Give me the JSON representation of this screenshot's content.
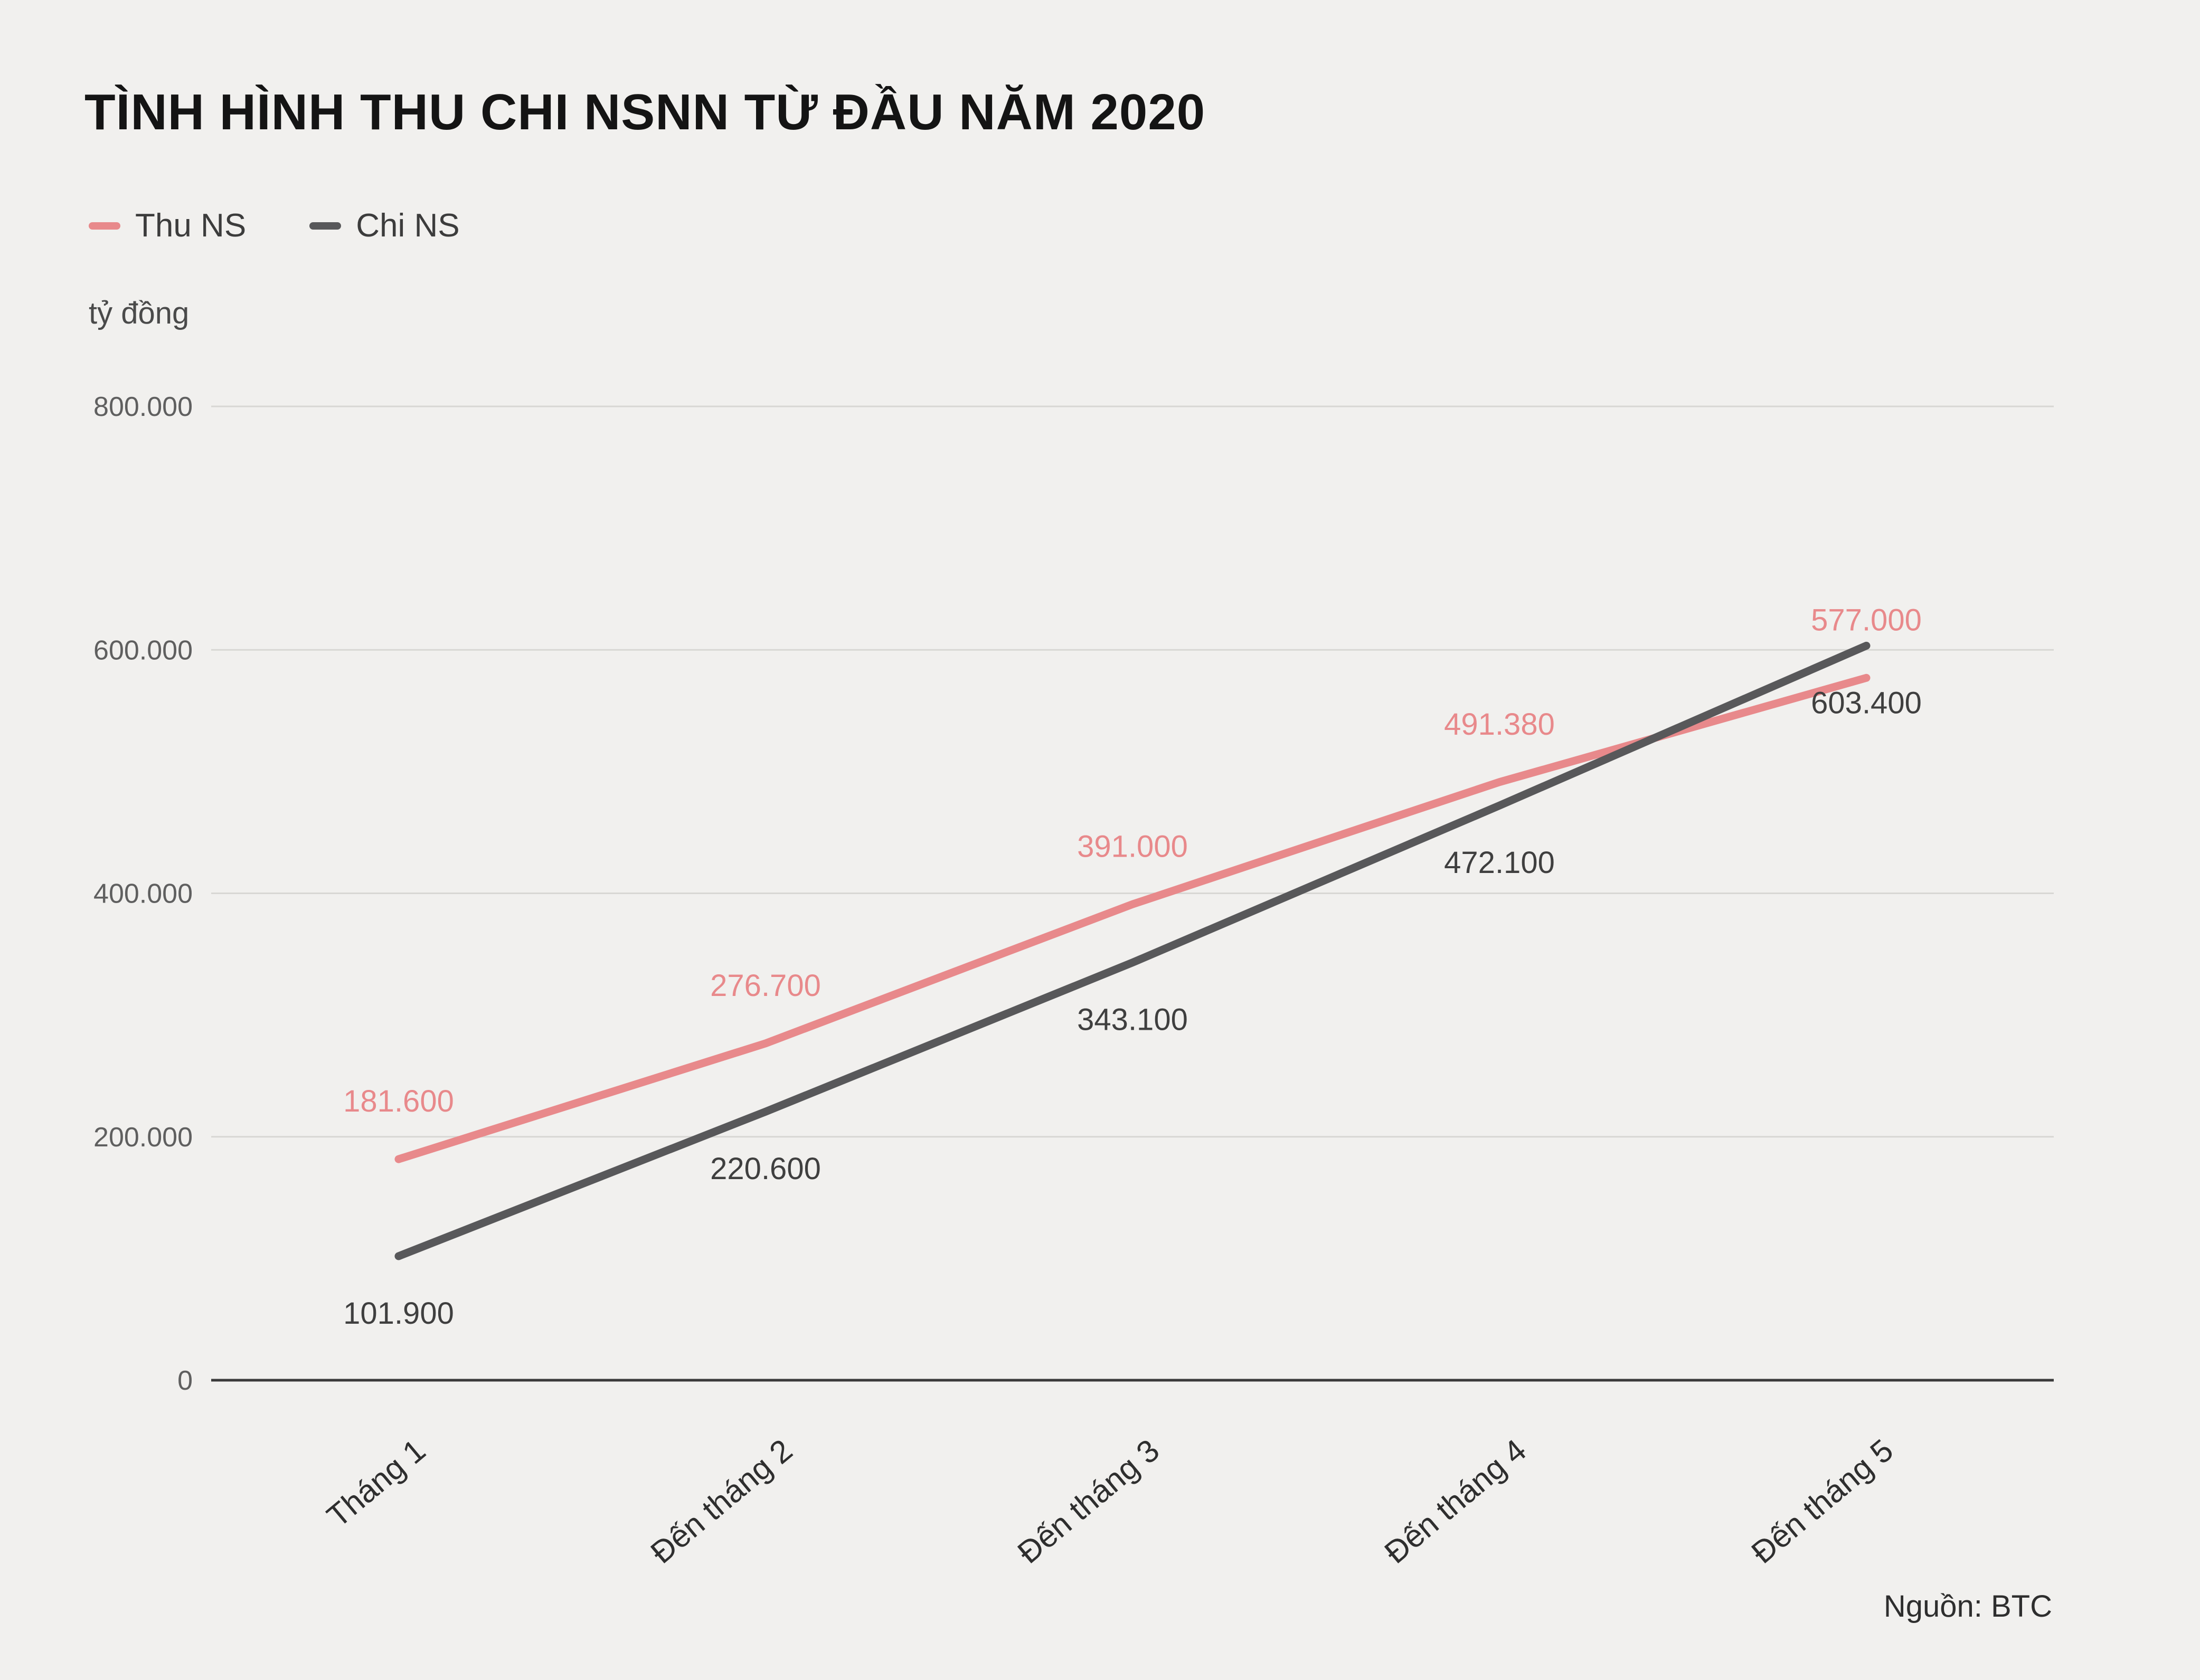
{
  "title": "TÌNH HÌNH THU CHI NSNN TỪ ĐẦU NĂM 2020",
  "unit_label": "tỷ đồng",
  "source": "Nguồn: BTC",
  "colors": {
    "background": "#f1f0ee",
    "thu_line": "#e8898b",
    "chi_line": "#58585a",
    "gridline": "#d8d7d4",
    "axis": "#3a3a3a",
    "tick_text": "#5f5f5f",
    "category_text": "#2e2e2e"
  },
  "chart_data": {
    "type": "line",
    "title": "TÌNH HÌNH THU CHI NSNN TỪ ĐẦU NĂM 2020",
    "ylabel": "tỷ đồng",
    "xlabel": "",
    "categories": [
      "Tháng 1",
      "Đến tháng 2",
      "Đến tháng 3",
      "Đến tháng 4",
      "Đến tháng 5"
    ],
    "series": [
      {
        "name": "Thu NS",
        "color": "#e8898b",
        "values": [
          181600,
          276700,
          391000,
          491380,
          577000
        ],
        "labels": [
          "181.600",
          "276.700",
          "391.000",
          "491.380",
          "577.000"
        ]
      },
      {
        "name": "Chi NS",
        "color": "#58585a",
        "values": [
          101900,
          220600,
          343100,
          472100,
          603400
        ],
        "labels": [
          "101.900",
          "220.600",
          "343.100",
          "472.100",
          "603.400"
        ]
      }
    ],
    "ylim": [
      0,
      800000
    ],
    "yticks": [
      0,
      200000,
      400000,
      600000,
      800000
    ],
    "ytick_labels": [
      "0",
      "200.000",
      "400.000",
      "600.000",
      "800.000"
    ],
    "grid": true,
    "legend_position": "top-left",
    "source": "Nguồn: BTC"
  }
}
